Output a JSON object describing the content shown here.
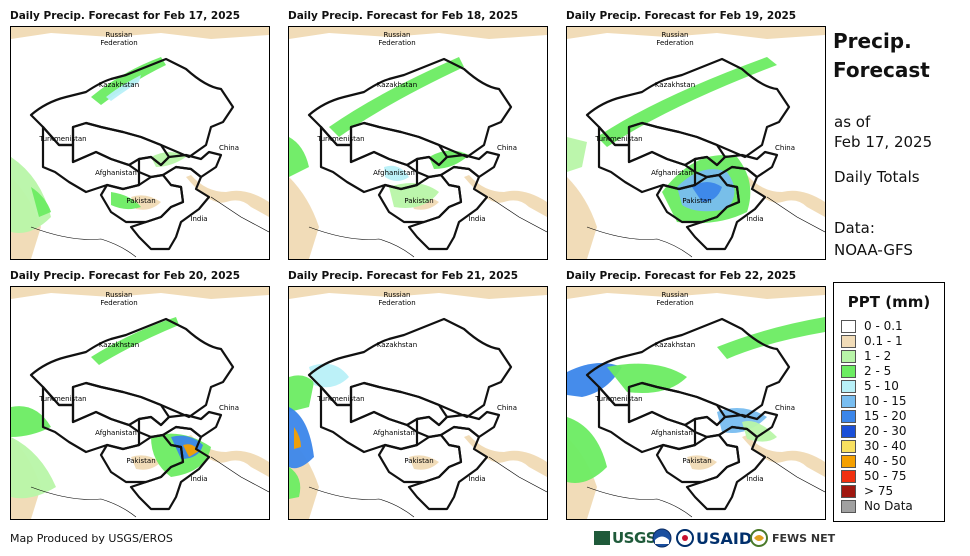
{
  "panels": [
    {
      "title": "Daily Precip. Forecast for Feb 17, 2025"
    },
    {
      "title": "Daily Precip. Forecast for Feb 18, 2025"
    },
    {
      "title": "Daily Precip. Forecast for Feb 19, 2025"
    },
    {
      "title": "Daily Precip. Forecast for Feb 20, 2025"
    },
    {
      "title": "Daily Precip. Forecast for Feb 21, 2025"
    },
    {
      "title": "Daily Precip. Forecast for Feb 22, 2025"
    }
  ],
  "map_labels": {
    "russia_1": "Russian",
    "russia_2": "Federation",
    "kazakhstan": "Kazakhstan",
    "turkmenistan": "Turkmenistan",
    "afghanistan": "Afghanistan",
    "pakistan": "Pakistan",
    "china": "China",
    "india": "India"
  },
  "sidebar": {
    "title_line1": "Precip.",
    "title_line2": "Forecast",
    "asof_line1": "as of",
    "asof_line2": "Feb 17, 2025",
    "totals": "Daily Totals",
    "data_line1": "Data:",
    "data_line2": "NOAA-GFS"
  },
  "legend": {
    "title": "PPT (mm)",
    "items": [
      {
        "label": "0 - 0.1",
        "color": "#ffffff"
      },
      {
        "label": "0.1 - 1",
        "color": "#f1dcb8"
      },
      {
        "label": "1 - 2",
        "color": "#b8f5a8"
      },
      {
        "label": "2 - 5",
        "color": "#6cec62"
      },
      {
        "label": "5 - 10",
        "color": "#b8f0f8"
      },
      {
        "label": "10 - 15",
        "color": "#78bdf0"
      },
      {
        "label": "15 - 20",
        "color": "#3b86ea"
      },
      {
        "label": "20 - 30",
        "color": "#1a4fd8"
      },
      {
        "label": "30 - 40",
        "color": "#f8e060"
      },
      {
        "label": "40 - 50",
        "color": "#f5a000"
      },
      {
        "label": "50 - 75",
        "color": "#f03010"
      },
      {
        "label": "> 75",
        "color": "#a01810"
      },
      {
        "label": "No Data",
        "color": "#a0a0a0"
      }
    ]
  },
  "footer": {
    "credit": "Map Produced by USGS/EROS"
  },
  "logos": {
    "usgs": "USGS",
    "noaa": "NOAA",
    "usaid": "USAID",
    "fewsnet": "FEWS NET"
  }
}
